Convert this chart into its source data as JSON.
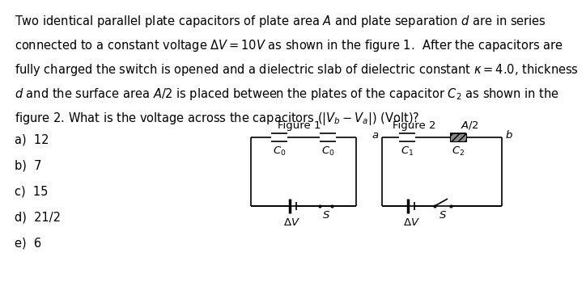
{
  "bg_color": "#ffffff",
  "text_color": "#000000",
  "lines": [
    "Two identical parallel plate capacitors of plate area $A$ and plate separation $d$ are in series",
    "connected to a constant voltage $\\Delta V = 10V$ as shown in the figure 1.  After the capacitors are",
    "fully charged the switch is opened and a dielectric slab of dielectric constant $\\kappa = 4.0$, thickness",
    "$d$ and the surface area $A/2$ is placed between the plates of the capacitor $C_2$ as shown in the",
    "figure 2. What is the voltage across the capacitors ($|V_b - V_a|$) (Volt)?"
  ],
  "options": [
    "a)  12",
    "b)  7",
    "c)  15",
    "d)  21/2",
    "e)  6"
  ],
  "fig1_label": "Figure 1",
  "fig2_label": "Figure 2",
  "font_size": 10.5,
  "circuit_font": 9.5
}
